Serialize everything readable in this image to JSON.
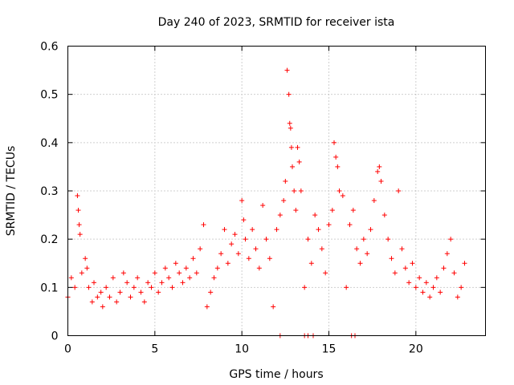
{
  "chart_data": {
    "type": "scatter",
    "title": "Day 240 of 2023, SRMTID for receiver ista",
    "xlabel": "GPS time / hours",
    "ylabel": "SRMTID / TECUs",
    "xlim": [
      0,
      24
    ],
    "ylim": [
      0,
      0.6
    ],
    "xticks": [
      0,
      5,
      10,
      15,
      20
    ],
    "xtick_labels": [
      "0",
      "5",
      "10",
      "15",
      "20"
    ],
    "yticks": [
      0,
      0.1,
      0.2,
      0.3,
      0.4,
      0.5,
      0.6
    ],
    "ytick_labels": [
      "0",
      "0.1",
      "0.2",
      "0.3",
      "0.4",
      "0.5",
      "0.6"
    ],
    "grid": true,
    "marker": "plus",
    "series_color": "#ff0000",
    "series": [
      {
        "name": "SRMTID",
        "x": [
          0.0,
          0.2,
          0.4,
          0.55,
          0.6,
          0.65,
          0.7,
          0.8,
          1.0,
          1.1,
          1.2,
          1.4,
          1.5,
          1.7,
          1.9,
          2.0,
          2.2,
          2.4,
          2.6,
          2.8,
          3.0,
          3.2,
          3.4,
          3.6,
          3.8,
          4.0,
          4.2,
          4.4,
          4.6,
          4.8,
          5.0,
          5.2,
          5.4,
          5.6,
          5.8,
          6.0,
          6.2,
          6.4,
          6.6,
          6.8,
          7.0,
          7.2,
          7.4,
          7.6,
          7.8,
          8.0,
          8.2,
          8.4,
          8.6,
          8.8,
          9.0,
          9.2,
          9.4,
          9.6,
          9.8,
          10.0,
          10.1,
          10.2,
          10.4,
          10.6,
          10.8,
          11.0,
          11.2,
          11.4,
          11.6,
          11.8,
          12.0,
          12.2,
          12.4,
          12.5,
          12.6,
          12.7,
          12.75,
          12.8,
          12.85,
          12.9,
          13.0,
          13.1,
          13.2,
          13.3,
          13.4,
          13.6,
          13.8,
          14.0,
          14.2,
          14.4,
          14.6,
          14.8,
          15.0,
          15.2,
          15.3,
          15.4,
          15.5,
          15.6,
          15.8,
          16.0,
          16.2,
          16.4,
          16.6,
          16.8,
          17.0,
          17.2,
          17.4,
          17.6,
          17.8,
          17.9,
          18.0,
          18.2,
          18.4,
          18.6,
          18.8,
          19.0,
          19.2,
          19.4,
          19.6,
          19.8,
          20.0,
          20.2,
          20.4,
          20.6,
          20.8,
          21.0,
          21.2,
          21.4,
          21.6,
          21.8,
          22.0,
          22.2,
          22.4,
          22.6,
          22.8,
          12.2,
          13.6,
          13.8,
          14.1,
          16.3,
          16.5
        ],
        "y": [
          0.08,
          0.12,
          0.1,
          0.29,
          0.26,
          0.23,
          0.21,
          0.13,
          0.16,
          0.14,
          0.1,
          0.07,
          0.11,
          0.08,
          0.09,
          0.06,
          0.1,
          0.08,
          0.12,
          0.07,
          0.09,
          0.13,
          0.11,
          0.08,
          0.1,
          0.12,
          0.09,
          0.07,
          0.11,
          0.1,
          0.13,
          0.09,
          0.11,
          0.14,
          0.12,
          0.1,
          0.15,
          0.13,
          0.11,
          0.14,
          0.12,
          0.16,
          0.13,
          0.18,
          0.23,
          0.06,
          0.09,
          0.12,
          0.14,
          0.17,
          0.22,
          0.15,
          0.19,
          0.21,
          0.17,
          0.28,
          0.24,
          0.2,
          0.16,
          0.22,
          0.18,
          0.14,
          0.27,
          0.2,
          0.16,
          0.06,
          0.22,
          0.25,
          0.28,
          0.32,
          0.55,
          0.5,
          0.44,
          0.43,
          0.39,
          0.35,
          0.3,
          0.26,
          0.39,
          0.36,
          0.3,
          0.1,
          0.2,
          0.15,
          0.25,
          0.22,
          0.18,
          0.13,
          0.23,
          0.26,
          0.4,
          0.37,
          0.35,
          0.3,
          0.29,
          0.1,
          0.23,
          0.26,
          0.18,
          0.15,
          0.2,
          0.17,
          0.22,
          0.28,
          0.34,
          0.35,
          0.32,
          0.25,
          0.2,
          0.16,
          0.13,
          0.3,
          0.18,
          0.14,
          0.11,
          0.15,
          0.1,
          0.12,
          0.09,
          0.11,
          0.08,
          0.1,
          0.12,
          0.09,
          0.14,
          0.17,
          0.2,
          0.13,
          0.08,
          0.1,
          0.15,
          0.0,
          0.0,
          0.0,
          0.0,
          0.0,
          0.0
        ]
      }
    ]
  }
}
